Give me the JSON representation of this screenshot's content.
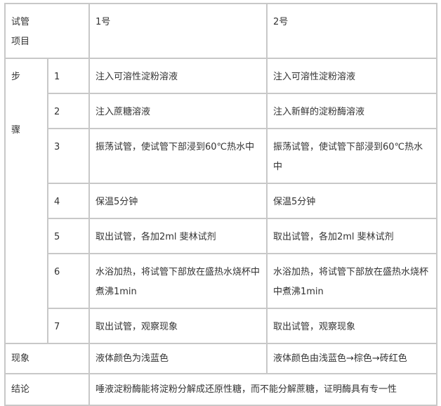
{
  "header": {
    "label_line1": "试管",
    "label_line2": "项目",
    "tube1": "1号",
    "tube2": "2号"
  },
  "steps_label": {
    "top": "步",
    "bottom": "骤"
  },
  "steps": [
    {
      "n": "1",
      "tube1": "注入可溶性淀粉溶液",
      "tube2": "注入可溶性淀粉溶液"
    },
    {
      "n": "2",
      "tube1": "注入蔗糖溶液",
      "tube2": "注入新鲜的淀粉酶溶液"
    },
    {
      "n": "3",
      "tube1": "振荡试管，使试管下部浸到60℃热水中",
      "tube2": "振荡试管，使试管下部浸到60℃热水中"
    },
    {
      "n": "4",
      "tube1": "保温5分钟",
      "tube2": "保温5分钟"
    },
    {
      "n": "5",
      "tube1": "取出试管，各加2ml 斐林试剂",
      "tube2": "取出试管，各加2ml 斐林试剂"
    },
    {
      "n": "6",
      "tube1": "水浴加热，将试管下部放在盛热水烧杯中煮沸1min",
      "tube2": "水浴加热，将试管下部放在盛热水烧杯中煮沸1min"
    },
    {
      "n": "7",
      "tube1": "取出试管，观察现象",
      "tube2": "取出试管，观察现象"
    }
  ],
  "phenomenon": {
    "label": "现象",
    "tube1": "液体颜色为浅蓝色",
    "tube2": "液体颜色由浅蓝色→棕色→砖红色"
  },
  "conclusion": {
    "label": "结论",
    "text": "唾液淀粉酶能将淀粉分解成还原性糖，而不能分解蔗糖，证明酶具有专一性"
  }
}
